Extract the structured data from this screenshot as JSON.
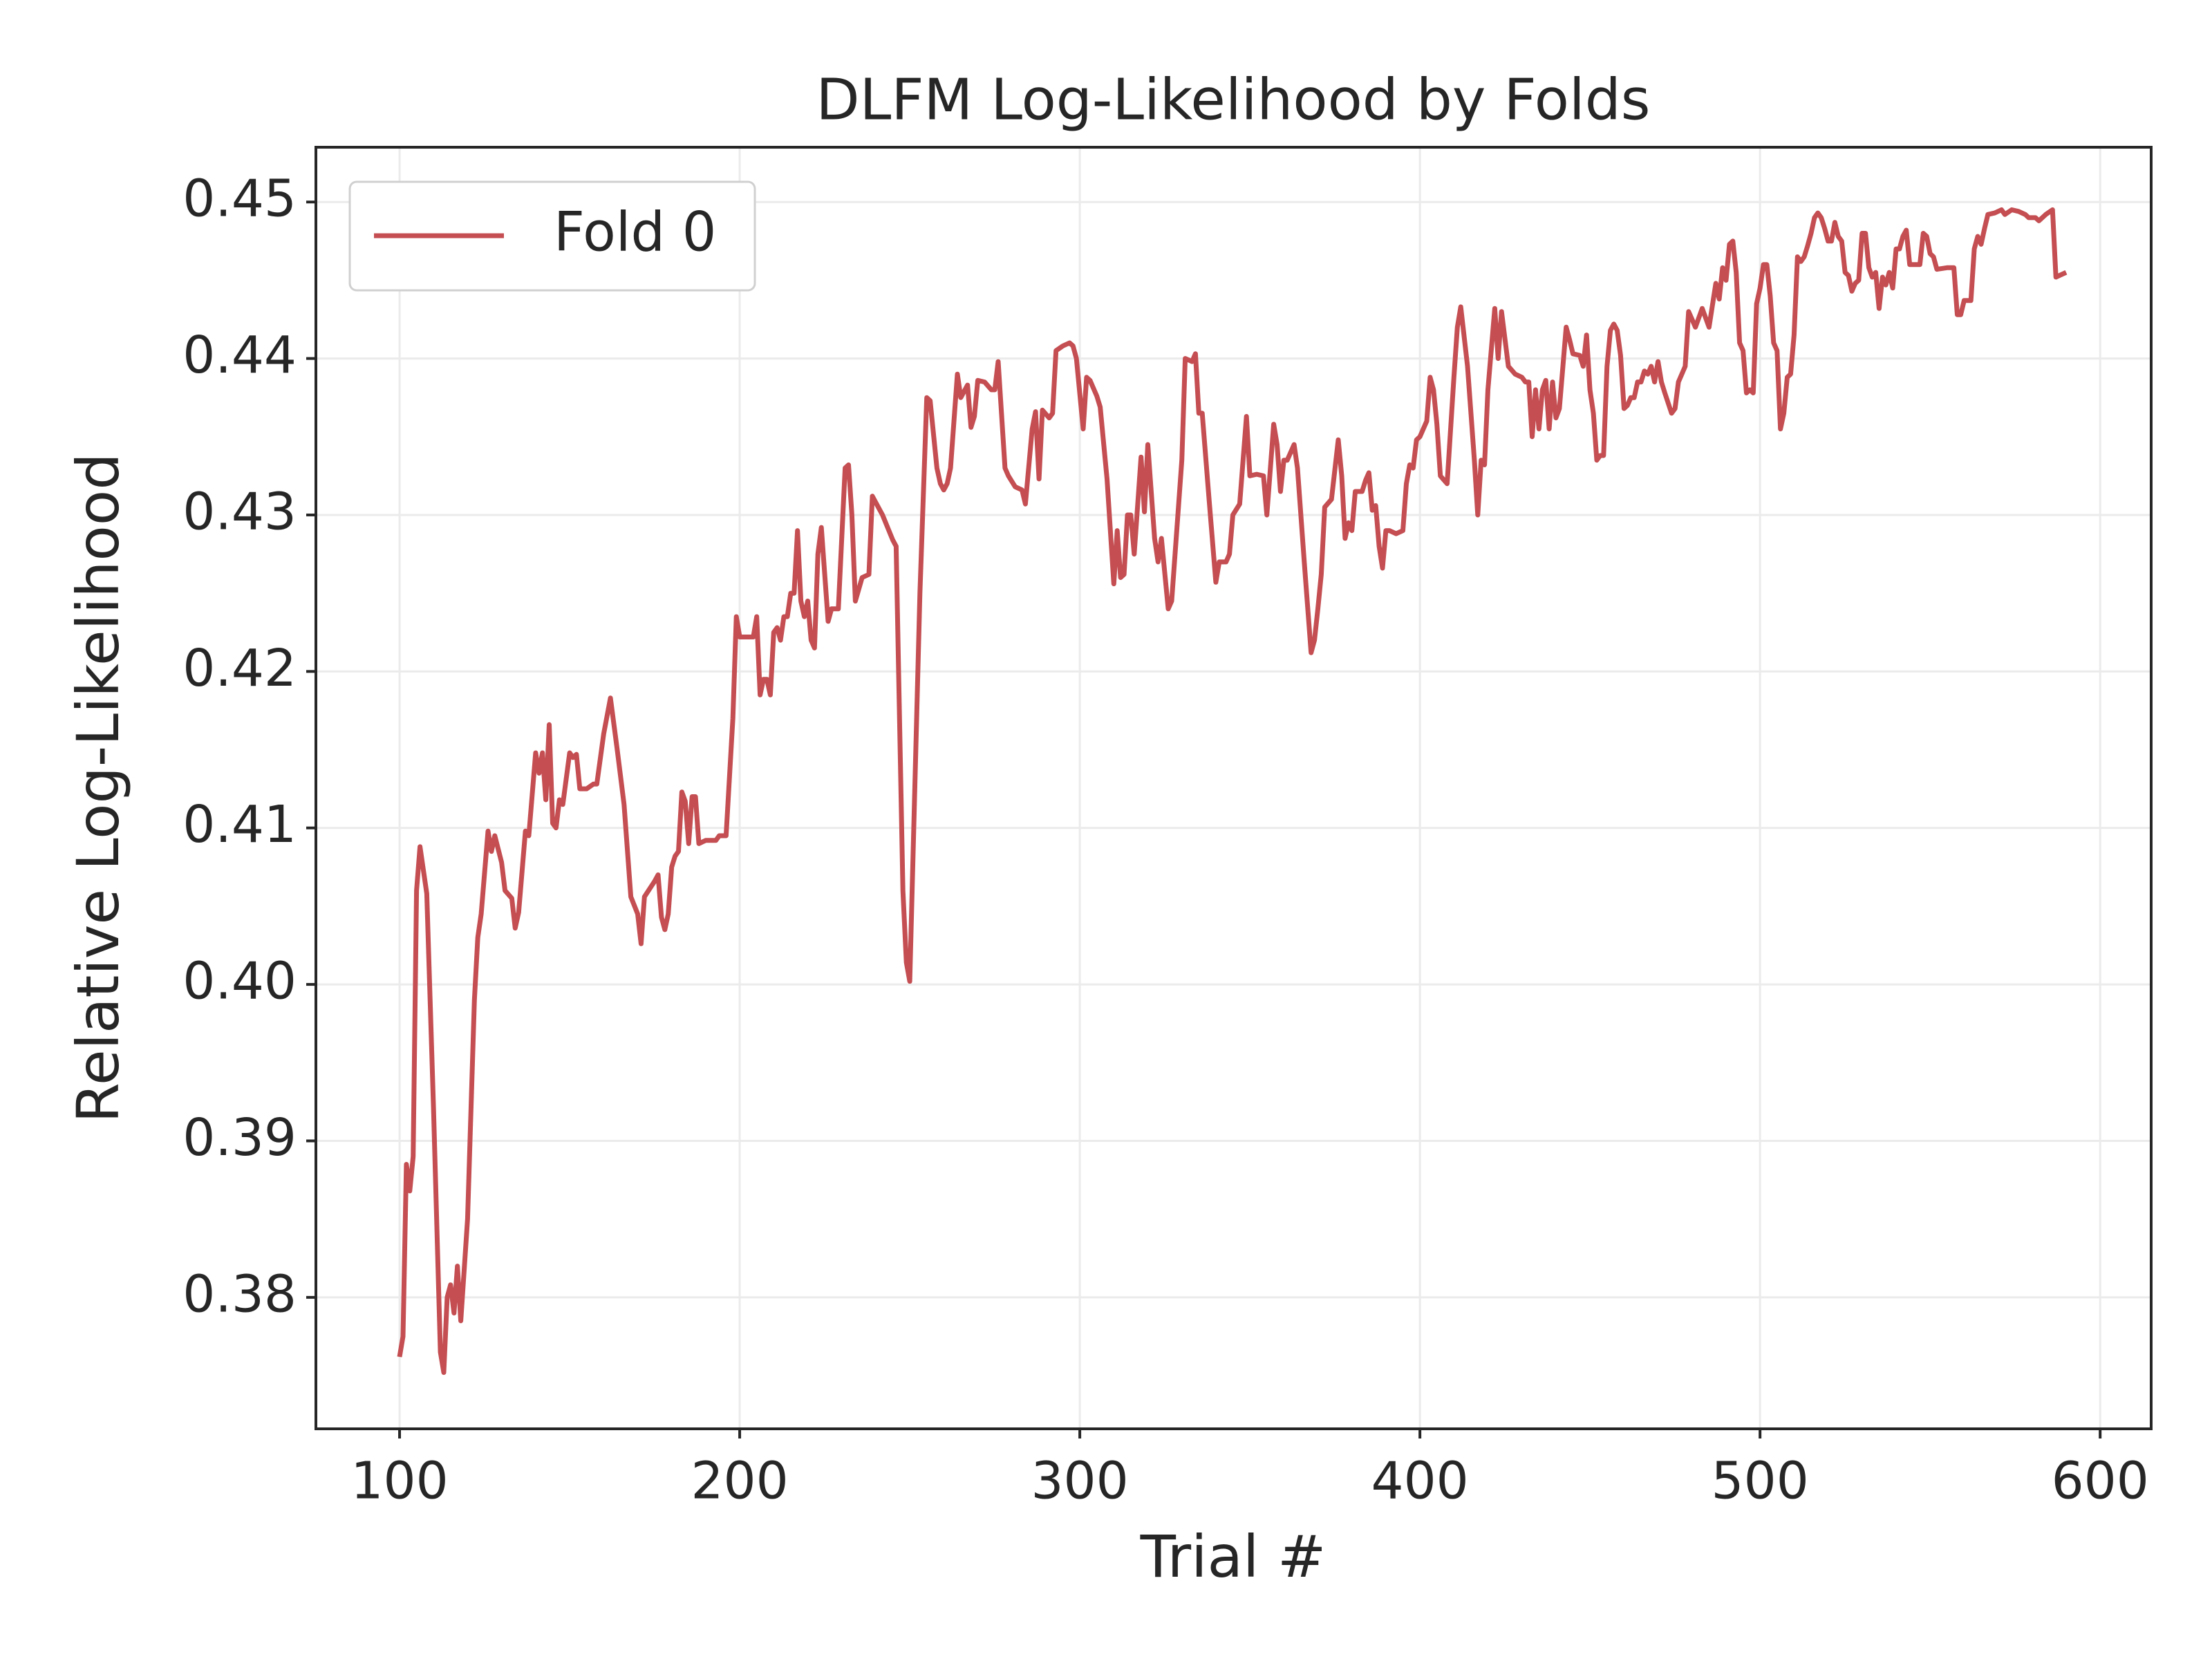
{
  "chart_data": {
    "type": "line",
    "title": "DLFM Log-Likelihood by Folds",
    "x_label": "Trial #",
    "y_label": "Relative Log-Likelihood",
    "x": [
      100,
      101,
      102,
      103,
      104,
      105,
      106,
      108,
      110,
      112,
      113,
      114,
      115,
      116,
      117,
      118,
      120,
      122,
      123,
      124,
      126,
      127,
      128,
      130,
      131,
      133,
      134,
      135,
      137,
      138,
      140,
      141,
      142,
      143,
      144,
      145,
      146,
      147,
      148,
      150,
      151,
      152,
      153,
      155,
      157,
      158,
      160,
      162,
      164,
      166,
      168,
      170,
      171,
      172,
      175,
      176,
      177,
      178,
      179,
      180,
      181,
      182,
      183,
      184,
      185,
      186,
      187,
      188,
      190,
      193,
      194,
      196,
      198,
      199,
      200,
      204,
      205,
      206,
      207,
      208,
      209,
      210,
      211,
      212,
      213,
      214,
      215,
      216,
      217,
      218,
      219,
      220,
      221,
      222,
      223,
      224,
      226,
      227,
      229,
      231,
      232,
      233,
      234,
      236,
      238,
      239,
      242,
      245,
      246,
      248,
      249,
      250,
      253,
      255,
      256,
      258,
      259,
      260,
      261,
      262,
      264,
      265,
      267,
      268,
      269,
      270,
      272,
      274,
      275,
      276,
      278,
      279,
      281,
      283,
      284,
      286,
      287,
      288,
      289,
      291,
      292,
      293,
      295,
      297,
      298,
      299,
      301,
      302,
      303,
      305,
      306,
      308,
      310,
      311,
      312,
      313,
      314,
      315,
      316,
      318,
      319,
      320,
      322,
      323,
      324,
      326,
      327,
      330,
      331,
      333,
      334,
      335,
      336,
      338,
      340,
      341,
      343,
      344,
      345,
      347,
      349,
      350,
      352,
      354,
      355,
      357,
      358,
      359,
      360,
      361,
      363,
      364,
      366,
      368,
      369,
      370,
      371,
      372,
      374,
      376,
      377,
      378,
      379,
      380,
      381,
      383,
      384,
      385,
      386,
      387,
      388,
      389,
      390,
      391,
      393,
      395,
      396,
      397,
      398,
      399,
      400,
      402,
      403,
      404,
      405,
      406,
      408,
      410,
      411,
      412,
      414,
      416,
      417,
      418,
      419,
      420,
      422,
      423,
      424,
      426,
      428,
      430,
      431,
      432,
      433,
      434,
      435,
      436,
      437,
      438,
      439,
      440,
      441,
      443,
      444,
      445,
      447,
      448,
      449,
      450,
      451,
      452,
      453,
      454,
      455,
      456,
      457,
      458,
      459,
      460,
      461,
      462,
      463,
      464,
      465,
      466,
      467,
      468,
      469,
      470,
      471,
      472,
      474,
      475,
      476,
      477,
      478,
      479,
      480,
      481,
      483,
      485,
      487,
      488,
      489,
      490,
      491,
      492,
      493,
      494,
      495,
      496,
      497,
      498,
      499,
      500,
      501,
      502,
      503,
      504,
      505,
      506,
      507,
      508,
      509,
      510,
      511,
      512,
      513,
      514,
      515,
      516,
      517,
      518,
      519,
      520,
      521,
      522,
      523,
      524,
      525,
      526,
      527,
      528,
      529,
      530,
      531,
      532,
      533,
      534,
      535,
      536,
      537,
      538,
      539,
      540,
      541,
      542,
      543,
      544,
      547,
      548,
      549,
      550,
      551,
      552,
      555,
      557,
      558,
      559,
      560,
      562,
      563,
      564,
      565,
      566,
      567,
      569,
      571,
      572,
      574,
      576,
      578,
      579,
      581,
      582,
      584,
      586,
      587,
      588,
      590
    ],
    "series": [
      {
        "name": "Fold 0",
        "color": "#c44e52",
        "values": [
          0.3762,
          0.3775,
          0.3885,
          0.3868,
          0.389,
          0.406,
          0.4088,
          0.4058,
          0.392,
          0.3765,
          0.3752,
          0.38,
          0.3808,
          0.379,
          0.382,
          0.3785,
          0.385,
          0.399,
          0.403,
          0.4045,
          0.4098,
          0.4085,
          0.4095,
          0.4078,
          0.406,
          0.4055,
          0.4036,
          0.4046,
          0.4098,
          0.4095,
          0.4148,
          0.4135,
          0.4148,
          0.4118,
          0.4166,
          0.4103,
          0.41,
          0.4118,
          0.4115,
          0.4148,
          0.4145,
          0.4147,
          0.4125,
          0.4125,
          0.4128,
          0.4128,
          0.416,
          0.4183,
          0.415,
          0.4115,
          0.4056,
          0.4045,
          0.4026,
          0.4056,
          0.4066,
          0.407,
          0.4043,
          0.4035,
          0.4045,
          0.4075,
          0.4082,
          0.4085,
          0.4123,
          0.4117,
          0.409,
          0.412,
          0.412,
          0.409,
          0.4092,
          0.4092,
          0.4095,
          0.4095,
          0.417,
          0.4235,
          0.4222,
          0.4222,
          0.4235,
          0.4185,
          0.4195,
          0.4195,
          0.4185,
          0.4225,
          0.4228,
          0.422,
          0.4235,
          0.4235,
          0.425,
          0.425,
          0.429,
          0.4245,
          0.4235,
          0.4245,
          0.422,
          0.4215,
          0.4275,
          0.4292,
          0.4232,
          0.424,
          0.424,
          0.433,
          0.4332,
          0.43,
          0.4245,
          0.426,
          0.4262,
          0.4312,
          0.43,
          0.4284,
          0.428,
          0.406,
          0.4014,
          0.4002,
          0.425,
          0.4375,
          0.4373,
          0.433,
          0.432,
          0.4316,
          0.432,
          0.433,
          0.439,
          0.4375,
          0.4383,
          0.4356,
          0.4363,
          0.4386,
          0.4385,
          0.438,
          0.438,
          0.4398,
          0.433,
          0.4325,
          0.4318,
          0.4316,
          0.4307,
          0.4355,
          0.4366,
          0.4323,
          0.4367,
          0.4362,
          0.4365,
          0.4405,
          0.4408,
          0.441,
          0.4408,
          0.44,
          0.4355,
          0.4388,
          0.4386,
          0.4376,
          0.4369,
          0.4323,
          0.4256,
          0.429,
          0.426,
          0.4262,
          0.43,
          0.43,
          0.4275,
          0.4337,
          0.4302,
          0.4345,
          0.4285,
          0.427,
          0.4285,
          0.424,
          0.4245,
          0.4335,
          0.44,
          0.4398,
          0.4403,
          0.4365,
          0.4365,
          0.431,
          0.4257,
          0.427,
          0.427,
          0.4275,
          0.43,
          0.4307,
          0.4363,
          0.4325,
          0.4326,
          0.4325,
          0.43,
          0.4358,
          0.4345,
          0.4315,
          0.4335,
          0.4335,
          0.4345,
          0.433,
          0.427,
          0.4212,
          0.422,
          0.424,
          0.4262,
          0.4305,
          0.431,
          0.4348,
          0.4325,
          0.4285,
          0.4295,
          0.429,
          0.4315,
          0.4315,
          0.4322,
          0.4327,
          0.4303,
          0.4306,
          0.428,
          0.4266,
          0.429,
          0.429,
          0.4288,
          0.429,
          0.432,
          0.4332,
          0.433,
          0.4348,
          0.435,
          0.436,
          0.4388,
          0.438,
          0.4358,
          0.4325,
          0.432,
          0.4388,
          0.442,
          0.4433,
          0.4395,
          0.4335,
          0.43,
          0.4335,
          0.4332,
          0.438,
          0.4432,
          0.44,
          0.443,
          0.4395,
          0.439,
          0.4388,
          0.4385,
          0.4385,
          0.435,
          0.438,
          0.4355,
          0.438,
          0.4386,
          0.4355,
          0.4385,
          0.4362,
          0.4368,
          0.442,
          0.4412,
          0.4403,
          0.4402,
          0.4395,
          0.4415,
          0.438,
          0.4365,
          0.4335,
          0.4338,
          0.4338,
          0.4395,
          0.4418,
          0.4422,
          0.4418,
          0.4402,
          0.4368,
          0.437,
          0.4375,
          0.4375,
          0.4385,
          0.4385,
          0.4392,
          0.439,
          0.4395,
          0.4385,
          0.4398,
          0.4385,
          0.4378,
          0.4365,
          0.4368,
          0.4385,
          0.439,
          0.4395,
          0.443,
          0.4425,
          0.442,
          0.4432,
          0.442,
          0.4448,
          0.4438,
          0.4458,
          0.445,
          0.4473,
          0.4475,
          0.4455,
          0.441,
          0.4405,
          0.4378,
          0.438,
          0.4378,
          0.4435,
          0.4445,
          0.446,
          0.446,
          0.444,
          0.441,
          0.4405,
          0.4355,
          0.4365,
          0.4388,
          0.439,
          0.4415,
          0.4465,
          0.4462,
          0.4465,
          0.4472,
          0.448,
          0.449,
          0.4493,
          0.449,
          0.4483,
          0.4475,
          0.4475,
          0.4487,
          0.4478,
          0.4475,
          0.4455,
          0.4453,
          0.4443,
          0.4448,
          0.445,
          0.448,
          0.448,
          0.4458,
          0.4452,
          0.4455,
          0.4432,
          0.4452,
          0.4447,
          0.4455,
          0.4445,
          0.447,
          0.447,
          0.4478,
          0.4482,
          0.446,
          0.446,
          0.448,
          0.4478,
          0.4467,
          0.4465,
          0.4457,
          0.4458,
          0.4458,
          0.4428,
          0.4428,
          0.4437,
          0.4437,
          0.447,
          0.4478,
          0.4473,
          0.4483,
          0.4492,
          0.4493,
          0.4495,
          0.4492,
          0.4495,
          0.4494,
          0.4492,
          0.449,
          0.449,
          0.4488,
          0.4492,
          0.4495,
          0.4452,
          0.4453,
          0.4455
        ]
      }
    ],
    "xlim": [
      75.4,
      615
    ],
    "ylim": [
      0.3716,
      0.4535
    ],
    "xticks": [
      100,
      200,
      300,
      400,
      500,
      600
    ],
    "yticks": [
      0.38,
      0.39,
      {
        "value": 0.4,
        "label": "0.40"
      },
      0.41,
      0.42,
      0.43,
      0.44,
      0.45
    ],
    "grid": true,
    "legend": "upper left"
  }
}
